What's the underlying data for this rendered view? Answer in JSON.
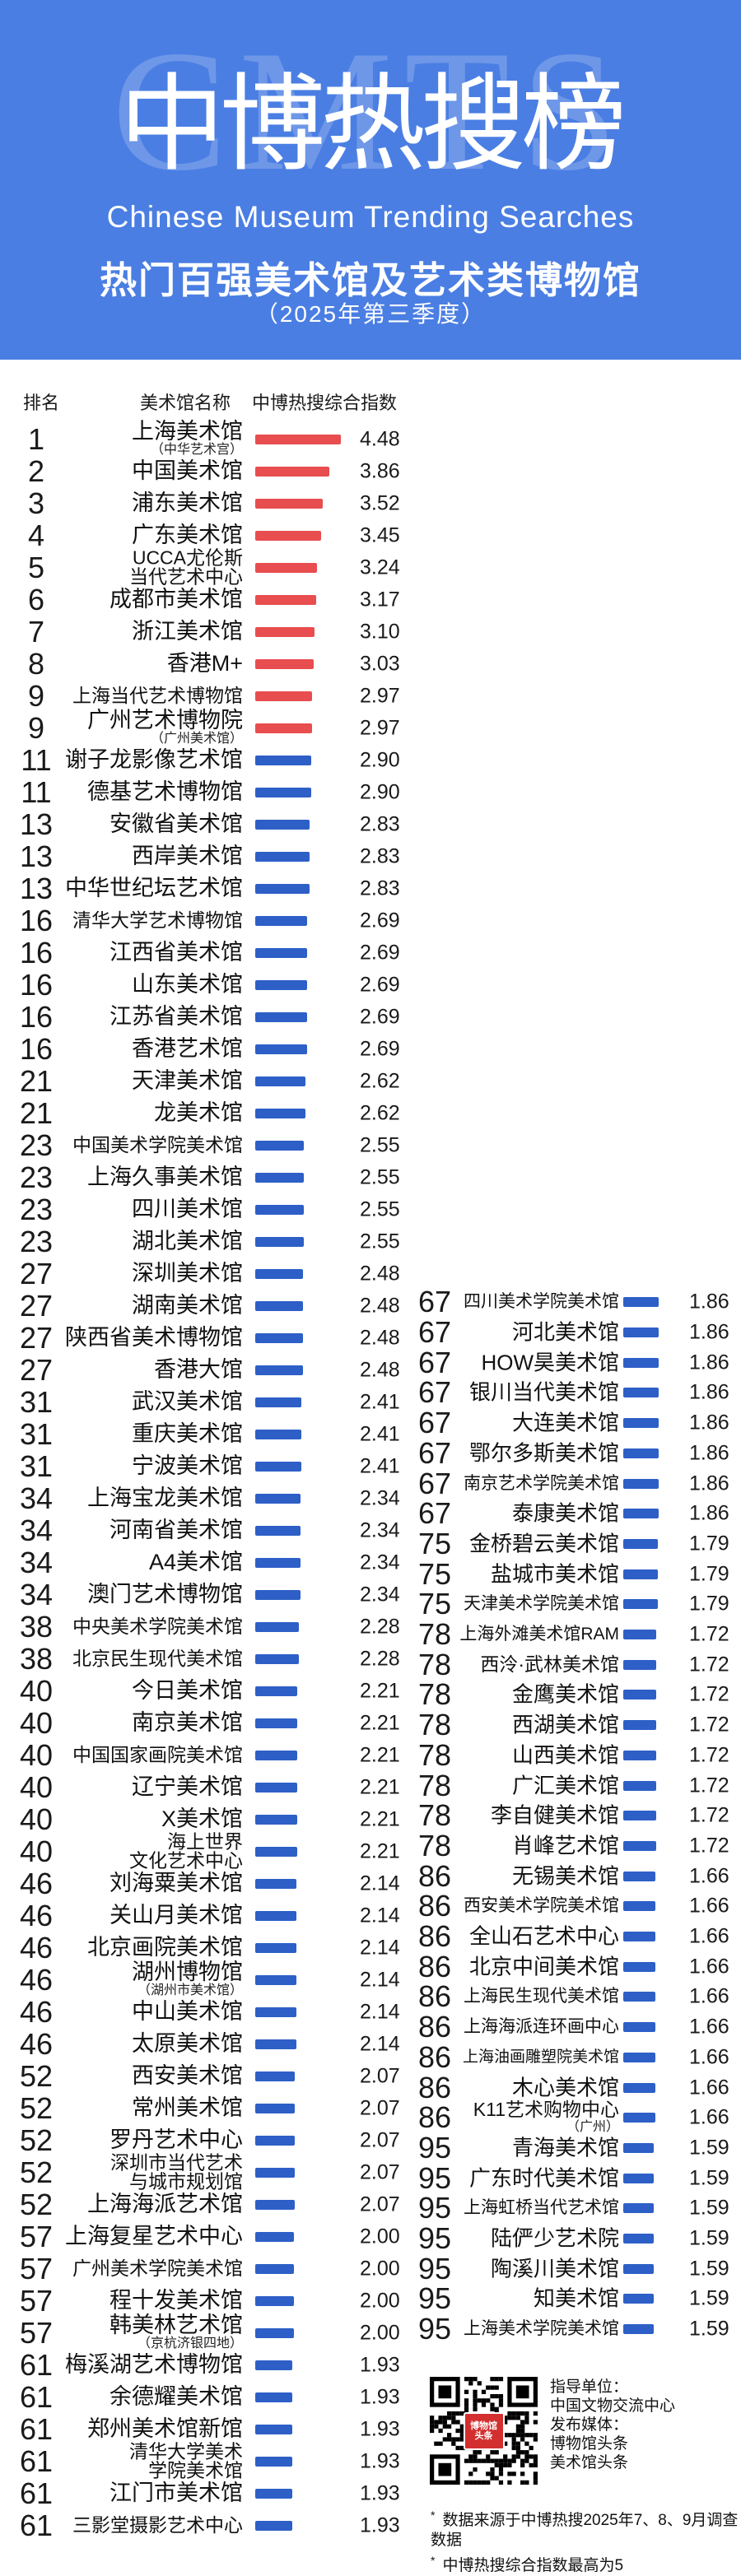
{
  "colors": {
    "header_bg": "#4A7EE3",
    "bar_top10": "#E84D4F",
    "bar_default": "#2D5FC7"
  },
  "header": {
    "watermark": "CMTS",
    "title": "中博热搜榜",
    "subtitle_en": "Chinese Museum Trending Searches",
    "subtitle_cn": "热门百强美术馆及艺术类博物馆",
    "period": "（2025年第三季度）"
  },
  "table": {
    "columns": {
      "rank": "排名",
      "name": "美术馆名称",
      "index": "中博热搜综合指数"
    }
  },
  "chart_data": {
    "type": "bar",
    "title": "热门百强美术馆及艺术类博物馆（2025年第三季度）",
    "value_label": "中博热搜综合指数",
    "value_max": 5,
    "left_column": [
      {
        "rank": 1,
        "name": "上海美术馆",
        "sub": "（中华艺术宫）",
        "value": "4.48"
      },
      {
        "rank": 2,
        "name": "中国美术馆",
        "value": "3.86"
      },
      {
        "rank": 3,
        "name": "浦东美术馆",
        "value": "3.52"
      },
      {
        "rank": 4,
        "name": "广东美术馆",
        "value": "3.45"
      },
      {
        "rank": 5,
        "name": "UCCA尤伦斯",
        "name2": "当代艺术中心",
        "value": "3.24"
      },
      {
        "rank": 6,
        "name": "成都市美术馆",
        "value": "3.17"
      },
      {
        "rank": 7,
        "name": "浙江美术馆",
        "value": "3.10"
      },
      {
        "rank": 8,
        "name": "香港M+",
        "value": "3.03"
      },
      {
        "rank": 9,
        "name": "上海当代艺术博物馆",
        "value": "2.97"
      },
      {
        "rank": 9,
        "name": "广州艺术博物院",
        "sub": "（广州美术馆）",
        "value": "2.97"
      },
      {
        "rank": 11,
        "name": "谢子龙影像艺术馆",
        "value": "2.90"
      },
      {
        "rank": 11,
        "name": "德基艺术博物馆",
        "value": "2.90"
      },
      {
        "rank": 13,
        "name": "安徽省美术馆",
        "value": "2.83"
      },
      {
        "rank": 13,
        "name": "西岸美术馆",
        "value": "2.83"
      },
      {
        "rank": 13,
        "name": "中华世纪坛艺术馆",
        "value": "2.83"
      },
      {
        "rank": 16,
        "name": "清华大学艺术博物馆",
        "value": "2.69"
      },
      {
        "rank": 16,
        "name": "江西省美术馆",
        "value": "2.69"
      },
      {
        "rank": 16,
        "name": "山东美术馆",
        "value": "2.69"
      },
      {
        "rank": 16,
        "name": "江苏省美术馆",
        "value": "2.69"
      },
      {
        "rank": 16,
        "name": "香港艺术馆",
        "value": "2.69"
      },
      {
        "rank": 21,
        "name": "天津美术馆",
        "value": "2.62"
      },
      {
        "rank": 21,
        "name": "龙美术馆",
        "value": "2.62"
      },
      {
        "rank": 23,
        "name": "中国美术学院美术馆",
        "value": "2.55"
      },
      {
        "rank": 23,
        "name": "上海久事美术馆",
        "value": "2.55"
      },
      {
        "rank": 23,
        "name": "四川美术馆",
        "value": "2.55"
      },
      {
        "rank": 23,
        "name": "湖北美术馆",
        "value": "2.55"
      },
      {
        "rank": 27,
        "name": "深圳美术馆",
        "value": "2.48"
      },
      {
        "rank": 27,
        "name": "湖南美术馆",
        "value": "2.48"
      },
      {
        "rank": 27,
        "name": "陕西省美术博物馆",
        "value": "2.48"
      },
      {
        "rank": 27,
        "name": "香港大馆",
        "value": "2.48"
      },
      {
        "rank": 31,
        "name": "武汉美术馆",
        "value": "2.41"
      },
      {
        "rank": 31,
        "name": "重庆美术馆",
        "value": "2.41"
      },
      {
        "rank": 31,
        "name": "宁波美术馆",
        "value": "2.41"
      },
      {
        "rank": 34,
        "name": "上海宝龙美术馆",
        "value": "2.34"
      },
      {
        "rank": 34,
        "name": "河南省美术馆",
        "value": "2.34"
      },
      {
        "rank": 34,
        "name": "A4美术馆",
        "value": "2.34"
      },
      {
        "rank": 34,
        "name": "澳门艺术博物馆",
        "value": "2.34"
      },
      {
        "rank": 38,
        "name": "中央美术学院美术馆",
        "value": "2.28"
      },
      {
        "rank": 38,
        "name": "北京民生现代美术馆",
        "value": "2.28"
      },
      {
        "rank": 40,
        "name": "今日美术馆",
        "value": "2.21"
      },
      {
        "rank": 40,
        "name": "南京美术馆",
        "value": "2.21"
      },
      {
        "rank": 40,
        "name": "中国国家画院美术馆",
        "value": "2.21"
      },
      {
        "rank": 40,
        "name": "辽宁美术馆",
        "value": "2.21"
      },
      {
        "rank": 40,
        "name": "X美术馆",
        "value": "2.21"
      },
      {
        "rank": 40,
        "name": "海上世界",
        "name2": "文化艺术中心",
        "value": "2.21"
      },
      {
        "rank": 46,
        "name": "刘海粟美术馆",
        "value": "2.14"
      },
      {
        "rank": 46,
        "name": "关山月美术馆",
        "value": "2.14"
      },
      {
        "rank": 46,
        "name": "北京画院美术馆",
        "value": "2.14"
      },
      {
        "rank": 46,
        "name": "湖州博物馆",
        "sub": "（湖州市美术馆）",
        "value": "2.14"
      },
      {
        "rank": 46,
        "name": "中山美术馆",
        "value": "2.14"
      },
      {
        "rank": 46,
        "name": "太原美术馆",
        "value": "2.14"
      },
      {
        "rank": 52,
        "name": "西安美术馆",
        "value": "2.07"
      },
      {
        "rank": 52,
        "name": "常州美术馆",
        "value": "2.07"
      },
      {
        "rank": 52,
        "name": "罗丹艺术中心",
        "value": "2.07"
      },
      {
        "rank": 52,
        "name": "深圳市当代艺术",
        "name2": "与城市规划馆",
        "value": "2.07"
      },
      {
        "rank": 52,
        "name": "上海海派艺术馆",
        "value": "2.07"
      },
      {
        "rank": 57,
        "name": "上海复星艺术中心",
        "value": "2.00"
      },
      {
        "rank": 57,
        "name": "广州美术学院美术馆",
        "value": "2.00"
      },
      {
        "rank": 57,
        "name": "程十发美术馆",
        "value": "2.00"
      },
      {
        "rank": 57,
        "name": "韩美林艺术馆",
        "sub": "（京杭济银四地）",
        "value": "2.00"
      },
      {
        "rank": 61,
        "name": "梅溪湖艺术博物馆",
        "value": "1.93"
      },
      {
        "rank": 61,
        "name": "余德耀美术馆",
        "value": "1.93"
      },
      {
        "rank": 61,
        "name": "郑州美术馆新馆",
        "value": "1.93"
      },
      {
        "rank": 61,
        "name": "清华大学美术",
        "name2": "学院美术馆",
        "value": "1.93"
      },
      {
        "rank": 61,
        "name": "江门市美术馆",
        "value": "1.93"
      },
      {
        "rank": 61,
        "name": "三影堂摄影艺术中心",
        "value": "1.93"
      }
    ],
    "right_column": [
      {
        "rank": 67,
        "name": "四川美术学院美术馆",
        "value": "1.86"
      },
      {
        "rank": 67,
        "name": "河北美术馆",
        "value": "1.86"
      },
      {
        "rank": 67,
        "name": "HOW昊美术馆",
        "value": "1.86"
      },
      {
        "rank": 67,
        "name": "银川当代美术馆",
        "value": "1.86"
      },
      {
        "rank": 67,
        "name": "大连美术馆",
        "value": "1.86"
      },
      {
        "rank": 67,
        "name": "鄂尔多斯美术馆",
        "value": "1.86"
      },
      {
        "rank": 67,
        "name": "南京艺术学院美术馆",
        "value": "1.86"
      },
      {
        "rank": 67,
        "name": "泰康美术馆",
        "value": "1.86"
      },
      {
        "rank": 75,
        "name": "金桥碧云美术馆",
        "value": "1.79"
      },
      {
        "rank": 75,
        "name": "盐城市美术馆",
        "value": "1.79"
      },
      {
        "rank": 75,
        "name": "天津美术学院美术馆",
        "value": "1.79"
      },
      {
        "rank": 78,
        "name": "上海外滩美术馆RAM",
        "value": "1.72"
      },
      {
        "rank": 78,
        "name": "西泠·武林美术馆",
        "value": "1.72"
      },
      {
        "rank": 78,
        "name": "金鹰美术馆",
        "value": "1.72"
      },
      {
        "rank": 78,
        "name": "西湖美术馆",
        "value": "1.72"
      },
      {
        "rank": 78,
        "name": "山西美术馆",
        "value": "1.72"
      },
      {
        "rank": 78,
        "name": "广汇美术馆",
        "value": "1.72"
      },
      {
        "rank": 78,
        "name": "李自健美术馆",
        "value": "1.72"
      },
      {
        "rank": 78,
        "name": "肖峰艺术馆",
        "value": "1.72"
      },
      {
        "rank": 86,
        "name": "无锡美术馆",
        "value": "1.66"
      },
      {
        "rank": 86,
        "name": "西安美术学院美术馆",
        "value": "1.66"
      },
      {
        "rank": 86,
        "name": "全山石艺术中心",
        "value": "1.66"
      },
      {
        "rank": 86,
        "name": "北京中间美术馆",
        "value": "1.66"
      },
      {
        "rank": 86,
        "name": "上海民生现代美术馆",
        "value": "1.66"
      },
      {
        "rank": 86,
        "name": "上海海派连环画中心",
        "value": "1.66"
      },
      {
        "rank": 86,
        "name": "上海油画雕塑院美术馆",
        "value": "1.66"
      },
      {
        "rank": 86,
        "name": "木心美术馆",
        "value": "1.66"
      },
      {
        "rank": 86,
        "name": "K11艺术购物中心",
        "sub": "（广州）",
        "value": "1.66"
      },
      {
        "rank": 95,
        "name": "青海美术馆",
        "value": "1.59"
      },
      {
        "rank": 95,
        "name": "广东时代美术馆",
        "value": "1.59"
      },
      {
        "rank": 95,
        "name": "上海虹桥当代艺术馆",
        "value": "1.59"
      },
      {
        "rank": 95,
        "name": "陆俨少艺术院",
        "value": "1.59"
      },
      {
        "rank": 95,
        "name": "陶溪川美术馆",
        "value": "1.59"
      },
      {
        "rank": 95,
        "name": "知美术馆",
        "value": "1.59"
      },
      {
        "rank": 95,
        "name": "上海美术学院美术馆",
        "value": "1.59"
      }
    ]
  },
  "footer": {
    "star": "*",
    "credits": [
      "指导单位：",
      "中国文物交流中心",
      "发布媒体：",
      "博物馆头条",
      "美术馆头条"
    ],
    "notes": [
      "数据来源于中博热搜2025年7、8、9月调查数据",
      "中博热搜综合指数最高为5"
    ],
    "qr_label_top": "博物馆",
    "qr_label_bottom": "头条"
  }
}
